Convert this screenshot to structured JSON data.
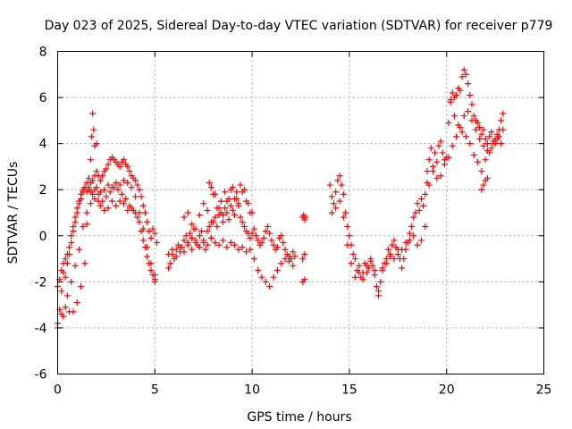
{
  "chart_data": {
    "type": "scatter",
    "title": "Day 023 of 2025, Sidereal Day-to-day VTEC variation (SDTVAR) for receiver p779",
    "xlabel": "GPS time / hours",
    "ylabel": "SDTVAR / TECUs",
    "xlim": [
      0,
      25
    ],
    "ylim": [
      -6,
      8
    ],
    "xticks": [
      0,
      5,
      10,
      15,
      20,
      25
    ],
    "yticks": [
      -6,
      -4,
      -2,
      0,
      2,
      4,
      6,
      8
    ],
    "grid": true,
    "legend": "none",
    "marker": "plus",
    "series": [
      {
        "name": "SDTVAR",
        "color": "#ff0000",
        "x": [
          0.0,
          0.1,
          0.2,
          0.3,
          0.4,
          0.5,
          0.6,
          0.7,
          0.8,
          0.9,
          1.0,
          1.1,
          1.2,
          1.3,
          1.4,
          1.5,
          1.6,
          1.7,
          1.8,
          1.9,
          2.0,
          2.1,
          2.2,
          2.3,
          2.4,
          2.5,
          2.6,
          2.7,
          2.8,
          2.9,
          3.0,
          3.1,
          3.2,
          3.3,
          3.4,
          3.5,
          3.6,
          3.7,
          3.8,
          3.9,
          4.0,
          4.1,
          4.2,
          4.3,
          4.4,
          4.5,
          4.6,
          4.7,
          4.8,
          4.9,
          5.0,
          5.1,
          0.0,
          0.1,
          0.2,
          0.3,
          0.4,
          0.5,
          0.6,
          0.7,
          0.8,
          0.9,
          1.0,
          1.1,
          1.2,
          1.3,
          1.4,
          1.5,
          1.6,
          1.7,
          1.8,
          1.9,
          2.0,
          2.2,
          2.4,
          2.6,
          2.8,
          3.0,
          3.2,
          3.4,
          3.6,
          3.8,
          4.0,
          4.2,
          4.4,
          4.6,
          4.8,
          5.0,
          0.0,
          0.2,
          0.4,
          0.6,
          0.8,
          1.0,
          1.2,
          1.4,
          1.5,
          1.6,
          1.7,
          1.75,
          1.8,
          1.85,
          1.9,
          2.0,
          2.1,
          2.2,
          2.4,
          2.6,
          2.8,
          3.0,
          3.2,
          3.4,
          3.6,
          3.8,
          4.0,
          4.2,
          4.4,
          4.6,
          4.8,
          5.0,
          0.3,
          0.5,
          0.7,
          0.9,
          1.1,
          1.3,
          1.5,
          1.7,
          1.9,
          2.1,
          2.3,
          2.5,
          2.7,
          2.9,
          3.1,
          3.3,
          3.5,
          3.7,
          3.9,
          4.1,
          4.3,
          4.5,
          4.7,
          4.9,
          5.0,
          5.7,
          5.8,
          5.9,
          6.0,
          6.1,
          6.2,
          6.3,
          6.4,
          6.5,
          6.6,
          6.7,
          6.8,
          6.9,
          7.0,
          7.1,
          7.2,
          7.3,
          7.4,
          7.5,
          7.6,
          7.7,
          7.8,
          7.9,
          8.0,
          8.1,
          8.2,
          8.3,
          8.4,
          8.5,
          8.6,
          8.7,
          8.8,
          8.9,
          9.0,
          9.1,
          9.2,
          9.3,
          9.4,
          9.5,
          9.6,
          9.7,
          9.8,
          9.9,
          10.0,
          10.1,
          10.2,
          10.3,
          10.4,
          10.5,
          10.6,
          10.7,
          10.8,
          10.9,
          11.0,
          11.1,
          11.2,
          11.3,
          11.4,
          11.5,
          11.6,
          11.7,
          11.8,
          11.9,
          12.0,
          12.1,
          12.2,
          5.7,
          5.9,
          6.1,
          6.3,
          6.5,
          6.7,
          6.9,
          7.1,
          7.3,
          7.5,
          7.7,
          7.9,
          8.1,
          8.3,
          8.5,
          8.7,
          8.9,
          9.1,
          9.3,
          9.5,
          9.7,
          9.9,
          10.1,
          10.3,
          10.5,
          10.7,
          10.9,
          11.1,
          11.3,
          11.5,
          11.7,
          11.9,
          12.1,
          6.5,
          6.7,
          6.9,
          7.1,
          7.3,
          7.5,
          7.7,
          7.9,
          8.1,
          8.3,
          8.5,
          8.7,
          8.9,
          9.1,
          9.3,
          9.5,
          9.7,
          9.9,
          7.8,
          7.9,
          8.0,
          8.2,
          8.4,
          8.6,
          8.8,
          9.0,
          9.2,
          9.4,
          9.6,
          9.8,
          10.0,
          12.6,
          12.65,
          12.7,
          12.75,
          12.6,
          12.7,
          12.6,
          12.7,
          14.0,
          14.1,
          14.2,
          14.3,
          14.4,
          14.5,
          14.6,
          14.7,
          14.8,
          14.9,
          15.0,
          15.1,
          15.2,
          15.3,
          15.4,
          15.5,
          15.6,
          15.7,
          15.8,
          15.9,
          16.0,
          16.1,
          16.2,
          16.3,
          16.4,
          16.5,
          16.6,
          16.7,
          16.8,
          16.9,
          17.0,
          17.1,
          17.2,
          17.3,
          17.4,
          17.5,
          17.6,
          17.7,
          17.8,
          17.9,
          18.0,
          18.1,
          18.2,
          18.3,
          18.4,
          18.5,
          18.6,
          18.7,
          18.8,
          18.9,
          19.0,
          14.1,
          14.3,
          14.5,
          14.7,
          14.9,
          15.1,
          15.3,
          15.5,
          15.7,
          15.9,
          16.1,
          16.3,
          16.5,
          16.7,
          16.9,
          17.1,
          17.3,
          17.5,
          17.7,
          17.9,
          18.1,
          18.3,
          18.5,
          18.7,
          18.9,
          19.0,
          19.1,
          19.2,
          19.3,
          19.4,
          19.5,
          19.6,
          19.7,
          19.8,
          19.9,
          20.0,
          20.1,
          20.2,
          20.3,
          20.4,
          20.5,
          20.6,
          20.7,
          20.8,
          20.9,
          21.0,
          21.1,
          21.2,
          21.3,
          21.4,
          21.5,
          21.6,
          21.7,
          21.8,
          21.9,
          22.0,
          22.1,
          22.2,
          22.3,
          22.4,
          22.5,
          22.6,
          22.7,
          22.8,
          22.9,
          19.1,
          19.3,
          19.5,
          19.7,
          19.9,
          20.1,
          20.3,
          20.5,
          20.7,
          20.9,
          21.1,
          21.3,
          21.5,
          21.7,
          21.9,
          22.1,
          22.3,
          22.5,
          22.7,
          22.9,
          20.2,
          20.4,
          20.6,
          20.8,
          21.0,
          21.2,
          21.4,
          21.6,
          21.8,
          22.0,
          22.2,
          22.4,
          22.6,
          22.8,
          21.8,
          21.9,
          22.0,
          22.1
        ],
        "y": [
          -3.8,
          -3.2,
          -2.4,
          -1.6,
          -1.8,
          -1.2,
          -0.8,
          -0.3,
          0.2,
          0.6,
          1.0,
          1.4,
          1.6,
          1.9,
          2.1,
          2.3,
          2.1,
          2.3,
          2.4,
          2.6,
          2.8,
          2.6,
          2.4,
          2.6,
          2.8,
          2.9,
          3.1,
          3.3,
          3.4,
          3.3,
          3.2,
          3.1,
          3.0,
          3.2,
          3.3,
          3.1,
          3.0,
          2.8,
          2.6,
          2.5,
          2.4,
          2.2,
          2.0,
          1.7,
          1.3,
          1.0,
          0.6,
          0.2,
          -0.1,
          0.3,
          0.1,
          -0.3,
          -2.2,
          -1.9,
          -1.5,
          -1.2,
          -1.0,
          -0.8,
          -0.5,
          0.0,
          0.4,
          0.8,
          1.2,
          1.5,
          1.8,
          2.0,
          2.1,
          1.9,
          2.0,
          1.9,
          1.8,
          2.0,
          2.1,
          1.9,
          2.0,
          2.2,
          2.1,
          2.3,
          2.2,
          2.4,
          2.3,
          2.1,
          1.7,
          1.0,
          0.3,
          -0.5,
          -1.2,
          -1.7,
          -4.0,
          -3.4,
          -3.1,
          -3.3,
          -3.3,
          -2.9,
          -2.2,
          -1.2,
          0.5,
          2.5,
          3.3,
          4.3,
          5.3,
          4.6,
          3.9,
          4.0,
          1.5,
          1.3,
          1.1,
          1.2,
          1.5,
          1.3,
          1.5,
          1.4,
          1.1,
          1.2,
          1.0,
          0.6,
          -0.2,
          -0.9,
          -1.5,
          -1.9,
          -3.5,
          -2.6,
          -2.0,
          -1.3,
          -0.6,
          0.4,
          1.0,
          1.4,
          1.6,
          1.8,
          1.5,
          1.7,
          1.9,
          2.1,
          2.0,
          1.8,
          1.6,
          1.3,
          1.1,
          0.8,
          0.2,
          -0.5,
          -1.2,
          -1.7,
          -2.0,
          -1.4,
          -1.2,
          -0.8,
          -1.0,
          -0.6,
          -0.4,
          -0.7,
          -0.5,
          -0.2,
          0.0,
          -0.3,
          0.1,
          -0.1,
          0.3,
          -0.2,
          -0.4,
          0.0,
          0.2,
          -0.3,
          -0.6,
          0.2,
          0.4,
          -0.1,
          0.6,
          0.8,
          0.4,
          0.9,
          1.0,
          0.6,
          1.2,
          1.0,
          0.7,
          1.3,
          1.1,
          0.9,
          1.6,
          1.4,
          0.8,
          0.6,
          0.4,
          0.2,
          0.1,
          -0.1,
          0.1,
          0.3,
          0.0,
          -0.2,
          -0.4,
          -0.3,
          -0.1,
          0.2,
          0.4,
          0.1,
          -0.2,
          -0.4,
          -0.6,
          -0.5,
          -0.1,
          0.0,
          -0.3,
          -0.6,
          -0.8,
          -0.9,
          -1.0,
          -0.7,
          -0.9,
          -0.8,
          -0.6,
          -0.9,
          -0.5,
          -0.7,
          -0.4,
          -0.6,
          -0.3,
          -0.5,
          -0.2,
          -0.4,
          -0.1,
          -0.3,
          -0.4,
          -0.2,
          -0.5,
          -0.3,
          -0.4,
          -0.6,
          -0.5,
          -0.7,
          -0.6,
          -1.0,
          -1.5,
          -1.8,
          -2.0,
          -2.2,
          -1.8,
          -1.5,
          -1.2,
          -1.0,
          -1.1,
          -1.3,
          0.8,
          1.0,
          0.5,
          0.3,
          0.9,
          1.4,
          1.1,
          0.6,
          1.8,
          1.2,
          0.9,
          1.5,
          2.0,
          1.6,
          1.3,
          1.9,
          1.5,
          1.0,
          2.3,
          2.1,
          1.8,
          1.2,
          1.5,
          1.9,
          1.6,
          2.1,
          1.9,
          2.2,
          2.0,
          1.4,
          1.0,
          0.8,
          0.9,
          0.7,
          0.8,
          -1.0,
          -0.8,
          -2.0,
          -1.9,
          2.2,
          1.7,
          1.4,
          1.9,
          2.4,
          2.6,
          2.2,
          1.8,
          1.0,
          0.4,
          0.0,
          -0.4,
          -0.8,
          -1.0,
          -1.5,
          -1.3,
          -1.8,
          -1.6,
          -1.2,
          -1.6,
          -1.4,
          -1.0,
          -1.3,
          -1.7,
          -2.2,
          -2.6,
          -2.0,
          -1.5,
          -1.2,
          -1.0,
          -0.6,
          -0.8,
          -0.4,
          -0.2,
          -0.5,
          -0.6,
          -1.0,
          -1.4,
          -1.0,
          -0.6,
          -0.3,
          0.1,
          0.4,
          0.8,
          1.0,
          1.4,
          1.1,
          1.6,
          1.3,
          1.8,
          2.3,
          1.0,
          1.2,
          1.5,
          0.8,
          -0.4,
          -1.2,
          -1.8,
          -1.6,
          -1.9,
          -1.3,
          -1.1,
          -1.5,
          -2.4,
          -1.4,
          -1.2,
          -0.9,
          -1.0,
          -0.8,
          -0.6,
          -0.3,
          -0.2,
          0.0,
          -0.4,
          -0.2,
          0.4,
          2.8,
          3.3,
          3.8,
          3.0,
          3.6,
          3.2,
          3.9,
          4.1,
          3.6,
          3.3,
          3.4,
          4.9,
          5.8,
          6.2,
          6.0,
          6.1,
          6.4,
          6.3,
          6.9,
          7.2,
          7.0,
          6.6,
          6.1,
          5.7,
          5.2,
          5.0,
          4.9,
          4.7,
          4.4,
          4.6,
          4.2,
          4.0,
          4.3,
          4.5,
          4.1,
          4.2,
          4.4,
          4.6,
          5.0,
          5.3,
          2.2,
          2.8,
          2.5,
          2.6,
          3.1,
          3.4,
          3.9,
          4.3,
          4.7,
          5.2,
          5.4,
          5.0,
          4.6,
          4.2,
          3.9,
          3.7,
          3.8,
          4.0,
          4.3,
          4.6,
          5.9,
          5.2,
          4.8,
          4.5,
          4.3,
          4.0,
          3.5,
          3.2,
          2.8,
          3.3,
          3.6,
          4.0,
          4.2,
          4.0,
          2.0,
          2.2,
          2.4,
          2.5
        ]
      }
    ]
  }
}
